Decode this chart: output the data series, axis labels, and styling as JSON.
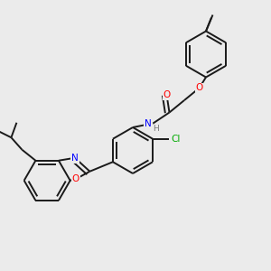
{
  "bg_color": "#ebebeb",
  "bond_color": "#1a1a1a",
  "atom_colors": {
    "O": "#ff0000",
    "N": "#0000ff",
    "Cl": "#00aa00",
    "C": "#1a1a1a"
  },
  "lw": 1.4,
  "dbo": 0.013
}
